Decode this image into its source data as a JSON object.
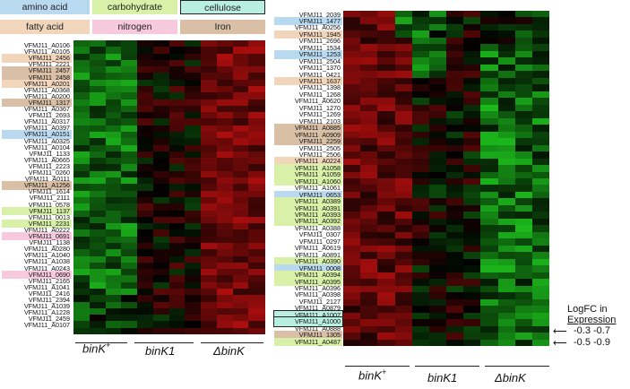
{
  "legend": [
    {
      "label": "amino acid",
      "color": "#b9d9f1"
    },
    {
      "label": "carbohydrate",
      "color": "#d8f0a8"
    },
    {
      "label": "cellulose",
      "color": "#b8efe0",
      "border": "#222"
    },
    {
      "label": "fatty acid",
      "color": "#f2d6bc"
    },
    {
      "label": "nitrogen",
      "color": "#f6c9dc"
    },
    {
      "label": "Iron",
      "color": "#d8bfa6"
    }
  ],
  "category_colors": {
    "amino acid": "#b9d9f1",
    "carbohydrate": "#d8f0a8",
    "cellulose": "#b8efe0",
    "fatty acid": "#f2d6bc",
    "nitrogen": "#f6c9dc",
    "Iron": "#d8bfa6"
  },
  "left_panel": {
    "genes": [
      {
        "name": "VFMJ11_A0106"
      },
      {
        "name": "VFMJ11_A0105"
      },
      {
        "name": "VFMJ11_2456",
        "cat": "fatty acid"
      },
      {
        "name": "VFMJ11_2221"
      },
      {
        "name": "VFMJ11_2457",
        "cat": "Iron"
      },
      {
        "name": "VFMJ11_2458",
        "cat": "Iron"
      },
      {
        "name": "VFMJ11_A0201",
        "cat": "fatty acid"
      },
      {
        "name": "VFMJ11_A0368"
      },
      {
        "name": "VFMJ11_A0200"
      },
      {
        "name": "VFMJ11_1317",
        "cat": "Iron"
      },
      {
        "name": "VFMJ11_A0367"
      },
      {
        "name": "VFMJ11_2693"
      },
      {
        "name": "VFMJ11_A0317"
      },
      {
        "name": "VFMJ11_A0397"
      },
      {
        "name": "VFMJ11_A0151",
        "cat": "amino acid"
      },
      {
        "name": "VFMJ11_A0325"
      },
      {
        "name": "VFMJ11_A0104"
      },
      {
        "name": "VFMJ11_1133"
      },
      {
        "name": "VFMJ11_A0665"
      },
      {
        "name": "VFMJ11_2223"
      },
      {
        "name": "VFMJ11_0260"
      },
      {
        "name": "VFMJ11_A0111"
      },
      {
        "name": "VFMJ11_A1256",
        "cat": "Iron"
      },
      {
        "name": "VFMJ11_1614"
      },
      {
        "name": "VFMJ11_2111"
      },
      {
        "name": "VFMJ11_0578"
      },
      {
        "name": "VFMJ11_1137",
        "cat": "carbohydrate"
      },
      {
        "name": "VFMJ11_0013"
      },
      {
        "name": "VFMJ11_2231",
        "cat": "carbohydrate"
      },
      {
        "name": "VFMJ11_A0222"
      },
      {
        "name": "VFMJ11_0691",
        "cat": "nitrogen"
      },
      {
        "name": "VFMJ11_1138"
      },
      {
        "name": "VFMJ11_A0280"
      },
      {
        "name": "VFMJ11_A1040"
      },
      {
        "name": "VFMJ11_A1038"
      },
      {
        "name": "VFMJ11_A0243"
      },
      {
        "name": "VFMJ11_0690",
        "cat": "nitrogen"
      },
      {
        "name": "VFMJ11_2165"
      },
      {
        "name": "VFMJ11_A1041"
      },
      {
        "name": "VFMJ11_2416"
      },
      {
        "name": "VFMJ11_2394"
      },
      {
        "name": "VFMJ11_A1039"
      },
      {
        "name": "VFMJ11_A1228"
      },
      {
        "name": "VFMJ11_2459"
      },
      {
        "name": "VFMJ11_A0107"
      }
    ]
  },
  "right_panel": {
    "genes": [
      {
        "name": "VFMJ11_2039"
      },
      {
        "name": "VFMJ11_1477",
        "cat": "amino acid"
      },
      {
        "name": "VFMJ11_A0256"
      },
      {
        "name": "VFMJ11_1945",
        "cat": "fatty acid"
      },
      {
        "name": "VFMJ11_2696"
      },
      {
        "name": "VFMJ11_1534"
      },
      {
        "name": "VFMJ11_1253",
        "cat": "amino acid"
      },
      {
        "name": "VFMJ11_2504"
      },
      {
        "name": "VFMJ11_1370"
      },
      {
        "name": "VFMJ11_0421"
      },
      {
        "name": "VFMJ11_1637",
        "cat": "fatty acid"
      },
      {
        "name": "VFMJ11_1398"
      },
      {
        "name": "VFMJ11_1268"
      },
      {
        "name": "VFMJ11_A0620"
      },
      {
        "name": "VFMJ11_1270"
      },
      {
        "name": "VFMJ11_1269"
      },
      {
        "name": "VFMJ11_2103"
      },
      {
        "name": "VFMJ11_A0885",
        "cat": "Iron"
      },
      {
        "name": "VFMJ11_A0909",
        "cat": "Iron"
      },
      {
        "name": "VFMJ11_2259",
        "cat": "Iron"
      },
      {
        "name": "VFMJ11_2505"
      },
      {
        "name": "VFMJ11_2506"
      },
      {
        "name": "VFMJ11_A0224",
        "cat": "fatty acid"
      },
      {
        "name": "VFMJ11_A1058",
        "cat": "carbohydrate"
      },
      {
        "name": "VFMJ11_A1059",
        "cat": "carbohydrate"
      },
      {
        "name": "VFMJ11_A1060",
        "cat": "carbohydrate"
      },
      {
        "name": "VFMJ11_A1061"
      },
      {
        "name": "VFMJ11_0653",
        "cat": "amino acid"
      },
      {
        "name": "VFMJ11_A0389",
        "cat": "carbohydrate"
      },
      {
        "name": "VFMJ11_A0391",
        "cat": "carbohydrate"
      },
      {
        "name": "VFMJ11_A0393",
        "cat": "carbohydrate"
      },
      {
        "name": "VFMJ11_A0392",
        "cat": "carbohydrate"
      },
      {
        "name": "VFMJ11_A0388"
      },
      {
        "name": "VFMJ11_0307"
      },
      {
        "name": "VFMJ11_0297"
      },
      {
        "name": "VFMJ11_A0619"
      },
      {
        "name": "VFMJ11_A0891"
      },
      {
        "name": "VFMJ11_A0390",
        "cat": "carbohydrate"
      },
      {
        "name": "VFMJ11_0008",
        "cat": "amino acid"
      },
      {
        "name": "VFMJ11_A0394",
        "cat": "carbohydrate"
      },
      {
        "name": "VFMJ11_A0395",
        "cat": "carbohydrate"
      },
      {
        "name": "VFMJ11_A0396"
      },
      {
        "name": "VFMJ11_A0398"
      },
      {
        "name": "VFMJ11_2127"
      },
      {
        "name": "VFMJ11_A0879"
      },
      {
        "name": "VFMJ11_A1007",
        "cat": "cellulose"
      },
      {
        "name": "VFMJ11_A1000",
        "cat": "cellulose"
      },
      {
        "name": "VFMJ11_A0888"
      },
      {
        "name": "VFMJ11_1305",
        "cat": "Iron"
      },
      {
        "name": "VFMJ11_A0487",
        "cat": "carbohydrate"
      }
    ]
  },
  "groups": [
    "binK",
    "binK1",
    "ΔbinK"
  ],
  "group_superscript": "+",
  "scale": {
    "title_line1": "LogFC in",
    "title_line2": "Expression",
    "row1": "-0.3  -0.7",
    "row2": "-0.5  -0.9"
  },
  "colors": {
    "up": "#2cd12c",
    "down": "#c01818"
  }
}
